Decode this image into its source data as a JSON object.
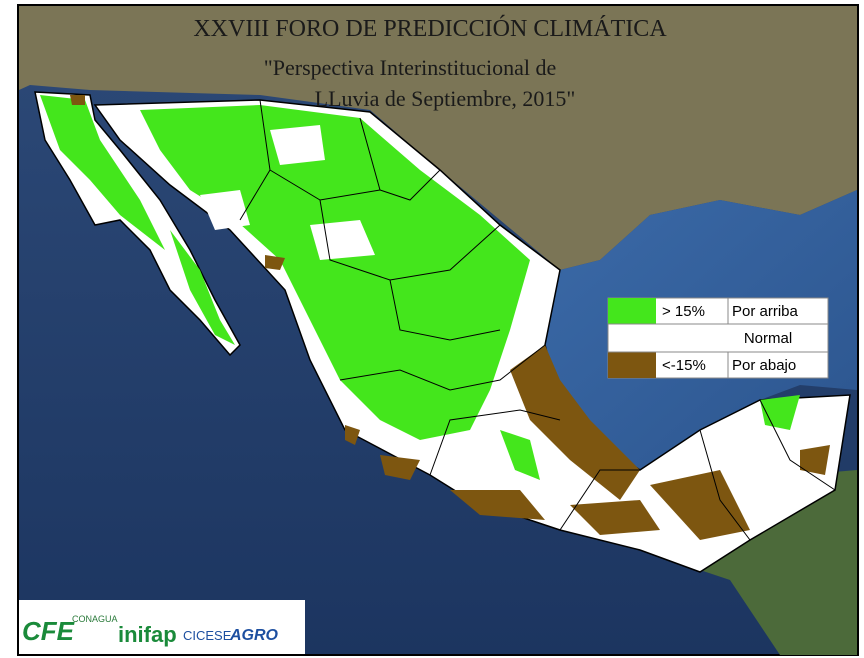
{
  "header": {
    "title": "XXVIII FORO DE PREDICCIÓN CLIMÁTICA",
    "subtitle_line_1": "\"Perspectiva Interinstitucional de",
    "subtitle_line_2": "LLuvia de Septiembre, 2015\""
  },
  "legend": {
    "items": [
      {
        "label": "> 15%",
        "text": "Por arriba"
      },
      {
        "text": "Normal"
      },
      {
        "label": "<-15%",
        "text": "Por abajo"
      }
    ]
  },
  "logos": {
    "items": [
      "CFE",
      "CONAGUA",
      "inifap",
      "CICESE",
      "AGRO"
    ]
  }
}
